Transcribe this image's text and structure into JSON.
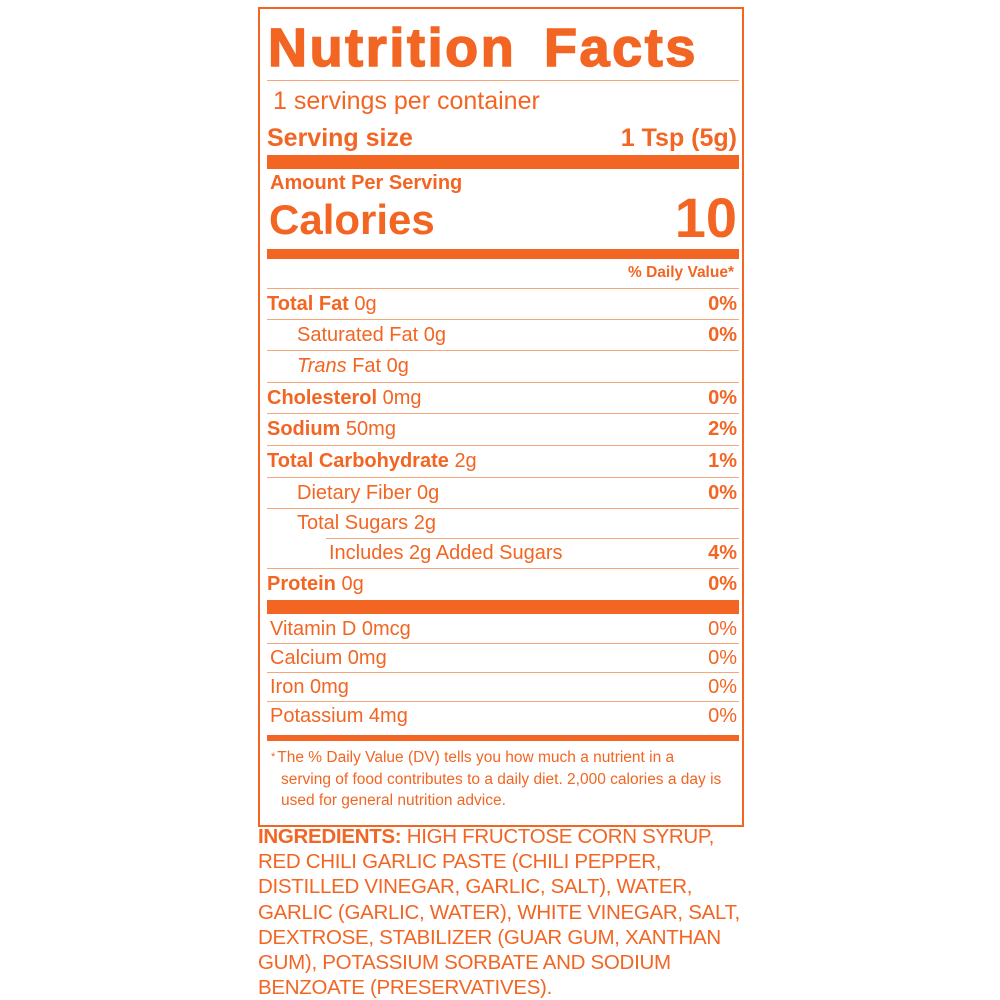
{
  "label": {
    "title": "Nutrition Facts",
    "servings_per_container": "1 servings per container",
    "serving_size_label": "Serving size",
    "serving_size_value": "1 Tsp (5g)",
    "amount_per_serving": "Amount Per Serving",
    "calories_label": "Calories",
    "calories_value": "10",
    "daily_value_header": "% Daily Value*",
    "nutrients": [
      {
        "name": "Total Fat",
        "amount": "0g",
        "dv": "0%"
      },
      {
        "name": "Saturated Fat",
        "amount": "0g",
        "dv": "0%"
      },
      {
        "name": "Trans",
        "name_rest": "Fat",
        "amount": "0g",
        "dv": ""
      },
      {
        "name": "Cholesterol",
        "amount": "0mg",
        "dv": "0%"
      },
      {
        "name": "Sodium",
        "amount": "50mg",
        "dv": "2%"
      },
      {
        "name": "Total Carbohydrate",
        "amount": "2g",
        "dv": "1%"
      },
      {
        "name": "Dietary Fiber",
        "amount": "0g",
        "dv": "0%"
      },
      {
        "name": "Total Sugars",
        "amount": "2g",
        "dv": ""
      },
      {
        "name": "Includes 2g Added Sugars",
        "amount": "",
        "dv": "4%"
      },
      {
        "name": "Protein",
        "amount": "0g",
        "dv": "0%"
      }
    ],
    "vitamins": [
      {
        "name": "Vitamin D 0mcg",
        "dv": "0%"
      },
      {
        "name": "Calcium 0mg",
        "dv": "0%"
      },
      {
        "name": "Iron 0mg",
        "dv": "0%"
      },
      {
        "name": "Potassium 4mg",
        "dv": "0%"
      }
    ],
    "footnote_mark": "*",
    "footnote": "The % Daily Value (DV) tells you how much a nutrient in a serving of food contributes to a daily diet. 2,000 calories a day is used for general nutrition advice."
  },
  "ingredients": {
    "label": "INGREDIENTS:",
    "text": "HIGH FRUCTOSE CORN SYRUP, RED CHILI GARLIC PASTE (CHILI PEPPER, DISTILLED VINEGAR, GARLIC, SALT), WATER, GARLIC (GARLIC, WATER), WHITE VINEGAR, SALT, DEXTROSE, STABILIZER (GUAR GUM, XANTHAN GUM), POTASSIUM SORBATE AND SODIUM BENZOATE (PRESERVATIVES)."
  },
  "colors": {
    "accent": "#F26522",
    "rule": "#F8A77A"
  }
}
